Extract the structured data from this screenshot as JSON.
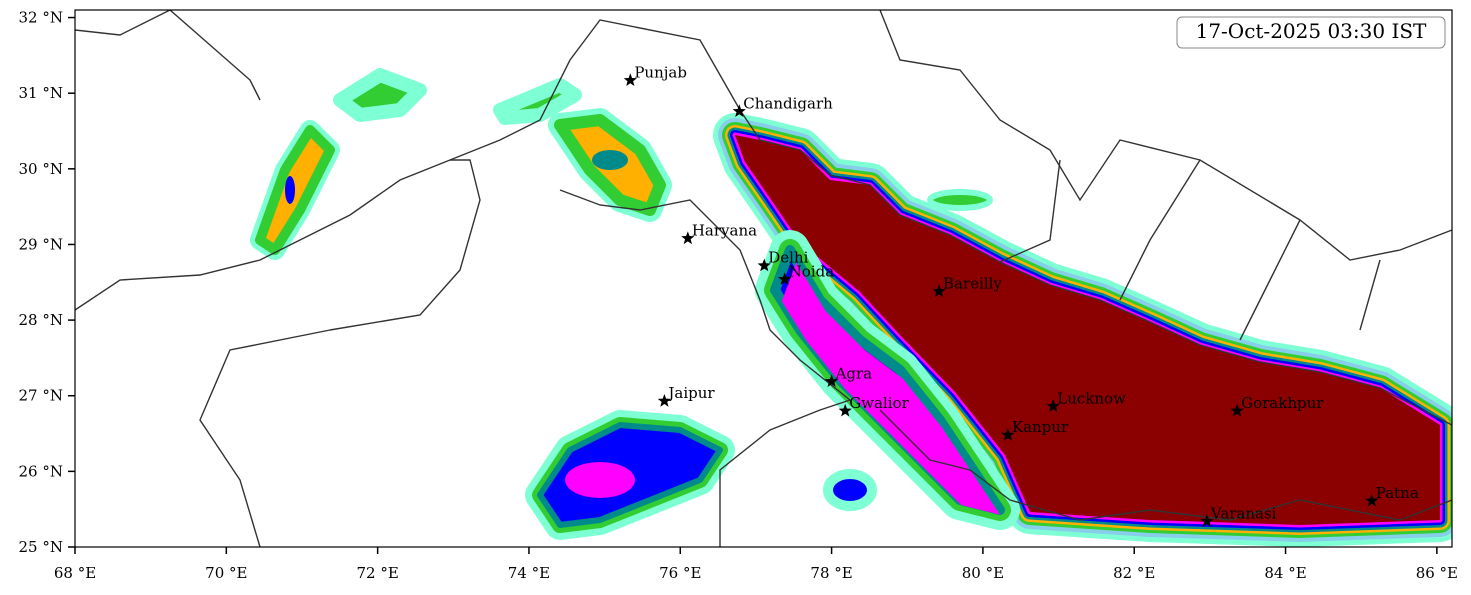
{
  "map": {
    "title": "17-Oct-2025 03:30 IST",
    "xlim": [
      68,
      86.2
    ],
    "ylim": [
      25,
      32.1
    ],
    "xticks": [
      {
        "value": 68,
        "label": "68 °E"
      },
      {
        "value": 70,
        "label": "70 °E"
      },
      {
        "value": 72,
        "label": "72 °E"
      },
      {
        "value": 74,
        "label": "74 °E"
      },
      {
        "value": 76,
        "label": "76 °E"
      },
      {
        "value": 78,
        "label": "78 °E"
      },
      {
        "value": 80,
        "label": "80 °E"
      },
      {
        "value": 82,
        "label": "82 °E"
      },
      {
        "value": 84,
        "label": "84 °E"
      },
      {
        "value": 86,
        "label": "86 °E"
      }
    ],
    "yticks": [
      {
        "value": 25,
        "label": "25 °N"
      },
      {
        "value": 26,
        "label": "26 °N"
      },
      {
        "value": 27,
        "label": "27 °N"
      },
      {
        "value": 28,
        "label": "28 °N"
      },
      {
        "value": 29,
        "label": "29 °N"
      },
      {
        "value": 30,
        "label": "30 °N"
      },
      {
        "value": 31,
        "label": "31 °N"
      },
      {
        "value": 32,
        "label": "32 °N"
      }
    ],
    "cities": [
      {
        "name": "Punjab",
        "lon": 75.34,
        "lat": 31.17
      },
      {
        "name": "Chandigarh",
        "lon": 76.78,
        "lat": 30.76
      },
      {
        "name": "Haryana",
        "lon": 76.1,
        "lat": 29.08
      },
      {
        "name": "Delhi",
        "lon": 77.11,
        "lat": 28.72
      },
      {
        "name": "Noida",
        "lon": 77.38,
        "lat": 28.54
      },
      {
        "name": "Bareilly",
        "lon": 79.42,
        "lat": 28.38
      },
      {
        "name": "Agra",
        "lon": 78.0,
        "lat": 27.19
      },
      {
        "name": "Jaipur",
        "lon": 75.79,
        "lat": 26.93
      },
      {
        "name": "Gwalior",
        "lon": 78.18,
        "lat": 26.8
      },
      {
        "name": "Lucknow",
        "lon": 80.93,
        "lat": 26.86
      },
      {
        "name": "Kanpur",
        "lon": 80.33,
        "lat": 26.48
      },
      {
        "name": "Gorakhpur",
        "lon": 83.36,
        "lat": 26.8
      },
      {
        "name": "Varanasi",
        "lon": 82.96,
        "lat": 25.34
      },
      {
        "name": "Patna",
        "lon": 85.14,
        "lat": 25.61
      }
    ]
  }
}
